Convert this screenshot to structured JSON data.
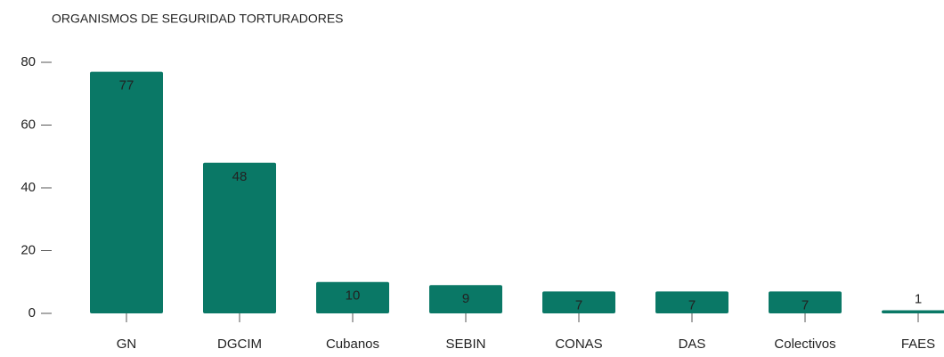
{
  "chart_data": {
    "type": "bar",
    "title": "ORGANISMOS DE SEGURIDAD TORTURADORES",
    "categories": [
      "GN",
      "DGCIM",
      "Cubanos",
      "SEBIN",
      "CONAS",
      "DAS",
      "Colectivos",
      "FAES"
    ],
    "values": [
      77,
      48,
      10,
      9,
      7,
      7,
      7,
      1
    ],
    "color": "#0a7866",
    "ylim": [
      0,
      80
    ],
    "yticks": [
      0,
      20,
      40,
      60,
      80
    ],
    "grid": false
  }
}
